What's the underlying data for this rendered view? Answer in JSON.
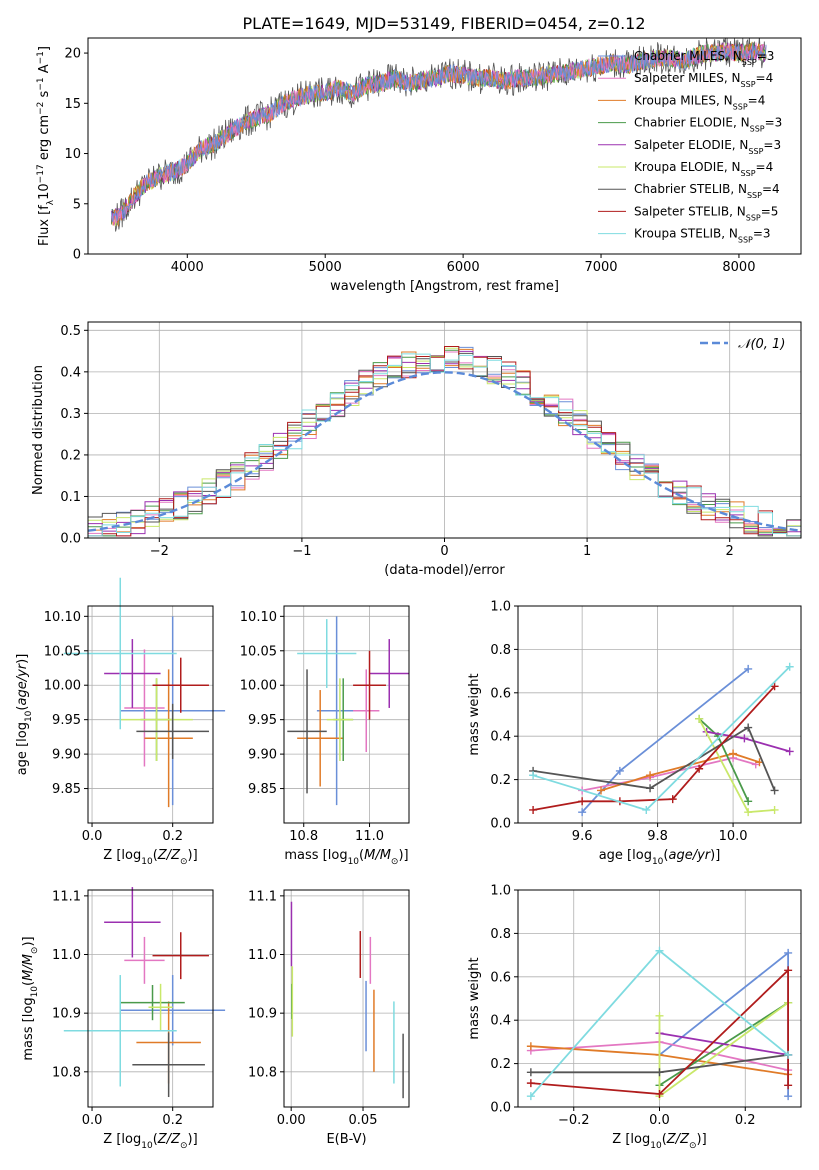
{
  "figure_title": "PLATE=1649, MJD=53149, FIBERID=0454, z=0.12",
  "chart_data": [
    {
      "id": "spectrum",
      "type": "line",
      "title": "PLATE=1649, MJD=53149, FIBERID=0454, z=0.12",
      "xlabel": "wavelength [Angstrom, rest frame]",
      "ylabel": "Flux [f_λ 10^-17 erg cm^-2 s^-1 A^-1]",
      "xlim": [
        3280,
        8450
      ],
      "ylim": [
        0,
        21.5
      ],
      "xticks": [
        "4000",
        "5000",
        "6000",
        "7000",
        "8000"
      ],
      "yticks": [
        "0",
        "5",
        "10",
        "15",
        "20"
      ],
      "grid": false,
      "legend_position": "top-right",
      "data_points": {
        "x": [
          3400,
          3500,
          3600,
          3700,
          3800,
          3900,
          4000,
          4100,
          4200,
          4300,
          4400,
          4500,
          4600,
          4700,
          4800,
          4900,
          5000,
          5100,
          5200,
          5300,
          5400,
          5500,
          5600,
          5700,
          5800,
          5900,
          6000,
          6100,
          6200,
          6300,
          6400,
          6500,
          6600,
          6700,
          6800,
          6900,
          7000,
          7100,
          7200,
          7300,
          7400,
          7500,
          7600,
          7700,
          7800,
          7900,
          8000,
          8100,
          8200
        ],
        "y": [
          3.8,
          3.6,
          5.5,
          7.0,
          7.8,
          8.2,
          9.0,
          10.5,
          11.0,
          12.0,
          13.0,
          13.5,
          14.0,
          15.0,
          15.5,
          16.0,
          16.0,
          16.5,
          16.0,
          16.8,
          17.0,
          17.5,
          17.0,
          17.2,
          17.5,
          18.0,
          17.8,
          17.5,
          17.5,
          17.2,
          17.5,
          17.5,
          17.8,
          18.0,
          18.2,
          18.5,
          18.8,
          19.0,
          18.8,
          19.2,
          19.5,
          19.5,
          19.2,
          19.8,
          20.0,
          20.2,
          20.0,
          20.2,
          20.0
        ]
      },
      "series": [
        {
          "name": "Chabrier MILES, N_SSP=3",
          "color": "#6a8fd8",
          "x_range": [
            3450,
            8200
          ]
        },
        {
          "name": "Salpeter MILES, N_SSP=4",
          "color": "#e377c2",
          "x_range": [
            3450,
            8200
          ]
        },
        {
          "name": "Kroupa MILES, N_SSP=4",
          "color": "#e07b28",
          "x_range": [
            3450,
            8200
          ]
        },
        {
          "name": "Chabrier ELODIE, N_SSP=3",
          "color": "#4a9a4a",
          "x_range": [
            3450,
            8200
          ]
        },
        {
          "name": "Salpeter ELODIE, N_SSP=3",
          "color": "#9b30b0",
          "x_range": [
            3450,
            8200
          ]
        },
        {
          "name": "Kroupa ELODIE, N_SSP=4",
          "color": "#c9e86a",
          "x_range": [
            3450,
            8200
          ]
        },
        {
          "name": "Chabrier STELIB, N_SSP=4",
          "color": "#555555",
          "x_range": [
            3450,
            8200
          ]
        },
        {
          "name": "Salpeter STELIB, N_SSP=5",
          "color": "#b01c1c",
          "x_range": [
            3450,
            8200
          ]
        },
        {
          "name": "Kroupa STELIB, N_SSP=3",
          "color": "#7fdbe0",
          "x_range": [
            3450,
            8200
          ]
        }
      ]
    },
    {
      "id": "residuals",
      "type": "histogram",
      "xlabel": "(data-model)/error",
      "ylabel": "Normed distribution",
      "xlim": [
        -2.5,
        2.5
      ],
      "ylim": [
        0,
        0.52
      ],
      "xticks": [
        "−2",
        "−1",
        "0",
        "1",
        "2"
      ],
      "yticks": [
        "0.0",
        "0.1",
        "0.2",
        "0.3",
        "0.4",
        "0.5"
      ],
      "grid": true,
      "legend_position": "top-right",
      "reference_curve": "𝒩(0, 1)",
      "reference_color": "#5b8ad8",
      "bin_width": 0.1
    },
    {
      "id": "age-vs-z",
      "type": "errorbar",
      "xlabel": "Z [log10(Z/Z⊙)]",
      "ylabel": "age  [log10(age/yr)]",
      "xlim": [
        -0.01,
        0.3
      ],
      "ylim": [
        9.8,
        10.115
      ],
      "xticks": [
        "0.0",
        "0.2"
      ],
      "yticks": [
        "9.85",
        "9.90",
        "9.95",
        "10.00",
        "10.05",
        "10.10"
      ],
      "grid": true,
      "points": [
        {
          "x": 0.2,
          "y": 9.963,
          "xerr": 0.13,
          "yerr": 0.137,
          "color": "#6a8fd8"
        },
        {
          "x": 0.13,
          "y": 9.967,
          "xerr": 0.05,
          "yerr": 0.085,
          "color": "#e377c2"
        },
        {
          "x": 0.19,
          "y": 9.923,
          "xerr": 0.06,
          "yerr": 0.1,
          "color": "#e07b28"
        },
        {
          "x": 0.16,
          "y": 9.95,
          "xerr": 0.04,
          "yerr": 0.06,
          "color": "#4a9a4a"
        },
        {
          "x": 0.1,
          "y": 10.017,
          "xerr": 0.07,
          "yerr": 0.05,
          "color": "#9b30b0"
        },
        {
          "x": 0.16,
          "y": 9.95,
          "xerr": 0.09,
          "yerr": 0.06,
          "color": "#c9e86a"
        },
        {
          "x": 0.2,
          "y": 9.933,
          "xerr": 0.09,
          "yerr": 0.04,
          "color": "#555555"
        },
        {
          "x": 0.22,
          "y": 10.0,
          "xerr": 0.07,
          "yerr": 0.04,
          "color": "#b01c1c"
        },
        {
          "x": 0.07,
          "y": 10.046,
          "xerr": 0.14,
          "yerr": 0.11,
          "color": "#7fdbe0"
        }
      ]
    },
    {
      "id": "age-vs-mass",
      "type": "errorbar",
      "xlabel": "mass [log10(M/M⊙)]",
      "ylabel": "",
      "xlim": [
        10.74,
        11.12
      ],
      "ylim": [
        9.8,
        10.115
      ],
      "xticks": [
        "10.8",
        "11.0"
      ],
      "yticks": [
        "9.85",
        "9.90",
        "9.95",
        "10.00",
        "10.05",
        "10.10"
      ],
      "grid": true,
      "points": [
        {
          "x": 10.9,
          "y": 9.963,
          "xerr": 0.06,
          "yerr": 0.137,
          "color": "#6a8fd8"
        },
        {
          "x": 10.99,
          "y": 9.963,
          "xerr": 0.04,
          "yerr": 0.06,
          "color": "#e377c2"
        },
        {
          "x": 10.85,
          "y": 9.923,
          "xerr": 0.07,
          "yerr": 0.07,
          "color": "#e07b28"
        },
        {
          "x": 10.92,
          "y": 9.95,
          "xerr": 0.03,
          "yerr": 0.06,
          "color": "#4a9a4a"
        },
        {
          "x": 11.06,
          "y": 10.017,
          "xerr": 0.06,
          "yerr": 0.05,
          "color": "#9b30b0"
        },
        {
          "x": 10.91,
          "y": 9.95,
          "xerr": 0.04,
          "yerr": 0.06,
          "color": "#c9e86a"
        },
        {
          "x": 10.81,
          "y": 9.933,
          "xerr": 0.06,
          "yerr": 0.09,
          "color": "#555555"
        },
        {
          "x": 11.0,
          "y": 10.0,
          "xerr": 0.05,
          "yerr": 0.05,
          "color": "#b01c1c"
        },
        {
          "x": 10.87,
          "y": 10.046,
          "xerr": 0.09,
          "yerr": 0.05,
          "color": "#7fdbe0"
        }
      ]
    },
    {
      "id": "weight-vs-age",
      "type": "line",
      "xlabel": "age  [log10(age/yr)]",
      "ylabel": "mass weight",
      "xlim": [
        9.43,
        10.18
      ],
      "ylim": [
        0,
        1.0
      ],
      "xticks": [
        "9.6",
        "9.8",
        "10.0"
      ],
      "yticks": [
        "0.0",
        "0.2",
        "0.4",
        "0.6",
        "0.8",
        "1.0"
      ],
      "grid": true,
      "series": [
        {
          "color": "#6a8fd8",
          "x": [
            9.6,
            9.7,
            10.04
          ],
          "y": [
            0.05,
            0.24,
            0.71
          ]
        },
        {
          "color": "#e377c2",
          "x": [
            9.6,
            9.78,
            10.0,
            10.06
          ],
          "y": [
            0.15,
            0.21,
            0.3,
            0.27
          ]
        },
        {
          "color": "#e07b28",
          "x": [
            9.65,
            9.78,
            10.0,
            10.07
          ],
          "y": [
            0.15,
            0.22,
            0.32,
            0.28
          ]
        },
        {
          "color": "#4a9a4a",
          "x": [
            9.91,
            9.96,
            10.04
          ],
          "y": [
            0.48,
            0.4,
            0.1
          ]
        },
        {
          "color": "#9b30b0",
          "x": [
            9.93,
            10.03,
            10.15
          ],
          "y": [
            0.42,
            0.39,
            0.33
          ]
        },
        {
          "color": "#c9e86a",
          "x": [
            9.91,
            10.04,
            10.11
          ],
          "y": [
            0.48,
            0.05,
            0.06
          ]
        },
        {
          "color": "#555555",
          "x": [
            9.47,
            9.78,
            10.04,
            10.11
          ],
          "y": [
            0.24,
            0.16,
            0.44,
            0.15
          ]
        },
        {
          "color": "#b01c1c",
          "x": [
            9.47,
            9.6,
            9.7,
            9.84,
            9.91,
            10.11
          ],
          "y": [
            0.06,
            0.1,
            0.1,
            0.11,
            0.25,
            0.63
          ]
        },
        {
          "color": "#7fdbe0",
          "x": [
            9.47,
            9.77,
            10.15
          ],
          "y": [
            0.22,
            0.06,
            0.72
          ]
        }
      ]
    },
    {
      "id": "mass-vs-z",
      "type": "errorbar",
      "xlabel": "Z [log10(Z/Z⊙)]",
      "ylabel": "mass [log10(M/M⊙)]",
      "xlim": [
        -0.01,
        0.3
      ],
      "ylim": [
        10.74,
        11.11
      ],
      "xticks": [
        "0.0",
        "0.2"
      ],
      "yticks": [
        "10.8",
        "10.9",
        "11.0",
        "11.1"
      ],
      "grid": true,
      "points": [
        {
          "x": 0.2,
          "y": 10.905,
          "xerr": 0.13,
          "yerr": 0.06,
          "color": "#6a8fd8"
        },
        {
          "x": 0.13,
          "y": 10.99,
          "xerr": 0.05,
          "yerr": 0.04,
          "color": "#e377c2"
        },
        {
          "x": 0.19,
          "y": 10.85,
          "xerr": 0.08,
          "yerr": 0.07,
          "color": "#e07b28"
        },
        {
          "x": 0.15,
          "y": 10.918,
          "xerr": 0.08,
          "yerr": 0.03,
          "color": "#4a9a4a"
        },
        {
          "x": 0.1,
          "y": 11.055,
          "xerr": 0.07,
          "yerr": 0.06,
          "color": "#9b30b0"
        },
        {
          "x": 0.17,
          "y": 10.91,
          "xerr": 0.03,
          "yerr": 0.04,
          "color": "#c9e86a"
        },
        {
          "x": 0.19,
          "y": 10.812,
          "xerr": 0.09,
          "yerr": 0.055,
          "color": "#555555"
        },
        {
          "x": 0.22,
          "y": 10.998,
          "xerr": 0.07,
          "yerr": 0.04,
          "color": "#b01c1c"
        },
        {
          "x": 0.07,
          "y": 10.87,
          "xerr": 0.14,
          "yerr": 0.095,
          "color": "#7fdbe0"
        }
      ]
    },
    {
      "id": "mass-vs-ebv",
      "type": "errorbar",
      "xlabel": "E(B-V)",
      "ylabel": "",
      "xlim": [
        -0.005,
        0.082
      ],
      "ylim": [
        10.74,
        11.11
      ],
      "xticks": [
        "0.00",
        "0.05"
      ],
      "yticks": [
        "10.8",
        "10.9",
        "11.0",
        "11.1"
      ],
      "grid": true,
      "points": [
        {
          "x": 0.0521,
          "y": 10.895,
          "yerr": 0.06,
          "color": "#6a8fd8"
        },
        {
          "x": 0.0551,
          "y": 10.99,
          "yerr": 0.04,
          "color": "#e377c2"
        },
        {
          "x": 0.0576,
          "y": 10.87,
          "yerr": 0.07,
          "color": "#e07b28"
        },
        {
          "x": 0.0004,
          "y": 10.92,
          "yerr": 0.03,
          "color": "#4a9a4a"
        },
        {
          "x": 0.0002,
          "y": 11.035,
          "yerr": 0.055,
          "color": "#9b30b0"
        },
        {
          "x": 0.0008,
          "y": 10.92,
          "yerr": 0.06,
          "color": "#c9e86a"
        },
        {
          "x": 0.0779,
          "y": 10.81,
          "yerr": 0.055,
          "color": "#555555"
        },
        {
          "x": 0.0481,
          "y": 11.0,
          "yerr": 0.04,
          "color": "#b01c1c"
        },
        {
          "x": 0.0715,
          "y": 10.85,
          "yerr": 0.07,
          "color": "#7fdbe0"
        }
      ]
    },
    {
      "id": "weight-vs-z",
      "type": "line",
      "xlabel": "Z [log10(Z/Z⊙)]",
      "ylabel": "mass weight",
      "xlim": [
        -0.33,
        0.33
      ],
      "ylim": [
        0,
        1.0
      ],
      "xticks": [
        "−0.2",
        "0.0",
        "0.2"
      ],
      "yticks": [
        "0.0",
        "0.2",
        "0.4",
        "0.6",
        "0.8",
        "1.0"
      ],
      "grid": true,
      "series": [
        {
          "color": "#6a8fd8",
          "x": [
            0.0,
            0.3,
            0.3
          ],
          "y": [
            0.24,
            0.71,
            0.05
          ]
        },
        {
          "color": "#e377c2",
          "x": [
            -0.3,
            0.0,
            0.3
          ],
          "y": [
            0.26,
            0.3,
            0.17
          ]
        },
        {
          "color": "#e07b28",
          "x": [
            -0.3,
            0.0,
            0.3
          ],
          "y": [
            0.28,
            0.24,
            0.15
          ]
        },
        {
          "color": "#4a9a4a",
          "x": [
            0.0,
            0.3
          ],
          "y": [
            0.1,
            0.48
          ]
        },
        {
          "color": "#9b30b0",
          "x": [
            0.0,
            0.3
          ],
          "y": [
            0.34,
            0.24
          ]
        },
        {
          "color": "#c9e86a",
          "x": [
            0.0,
            0.0,
            0.3
          ],
          "y": [
            0.42,
            0.05,
            0.48
          ]
        },
        {
          "color": "#555555",
          "x": [
            -0.3,
            0.0,
            0.3
          ],
          "y": [
            0.16,
            0.16,
            0.24
          ]
        },
        {
          "color": "#b01c1c",
          "x": [
            -0.3,
            0.0,
            0.3,
            0.3
          ],
          "y": [
            0.11,
            0.06,
            0.63,
            0.1
          ]
        },
        {
          "color": "#7fdbe0",
          "x": [
            -0.3,
            0.0,
            0.3
          ],
          "y": [
            0.05,
            0.72,
            0.24
          ]
        }
      ]
    }
  ]
}
